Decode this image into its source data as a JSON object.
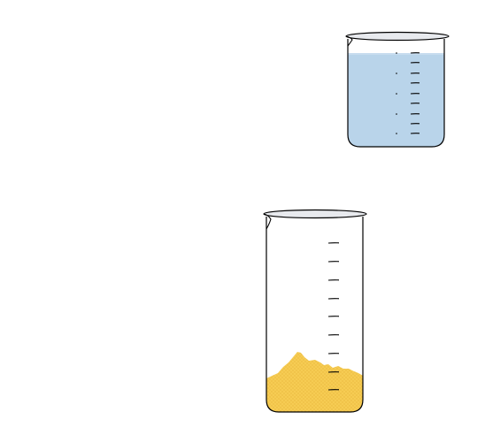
{
  "colors": {
    "background": "#ffffff",
    "outline": "#000000",
    "glass_rim": "#e8eaee",
    "water": "#b9d4ea",
    "water_surface": "#c7dcef",
    "sand": "#f6cc53",
    "sand_dots": "#d89a1e"
  },
  "objects": [
    {
      "name": "small-beaker-with-water",
      "contents": "water",
      "fill_level": 0.78,
      "graduation_marks": 10
    },
    {
      "name": "tall-beaker-with-sand",
      "contents": "sand",
      "fill_level": 0.22,
      "graduation_marks": 9
    }
  ]
}
